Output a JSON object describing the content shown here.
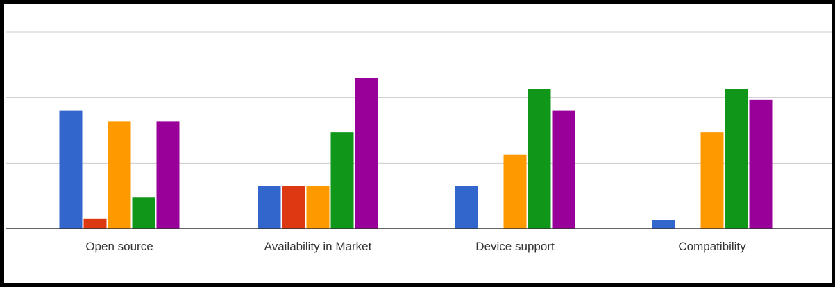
{
  "chart_data": {
    "type": "bar",
    "title": "",
    "xlabel": "",
    "ylabel": "",
    "categories": [
      "Open source",
      "Availability in Market",
      "Device support",
      "Compatibility"
    ],
    "ylim": [
      0,
      18
    ],
    "gridlines": [
      6,
      12,
      18
    ],
    "legend": "none",
    "series": [
      {
        "color": "#3366cc",
        "values": [
          10.8,
          3.9,
          3.9,
          0.8
        ]
      },
      {
        "color": "#dc3912",
        "values": [
          0.9,
          3.9,
          0,
          0
        ]
      },
      {
        "color": "#ff9900",
        "values": [
          9.8,
          3.9,
          6.8,
          8.8
        ]
      },
      {
        "color": "#109618",
        "values": [
          2.9,
          8.8,
          12.8,
          12.8
        ]
      },
      {
        "color": "#990099",
        "values": [
          9.8,
          13.8,
          10.8,
          11.8
        ]
      }
    ]
  }
}
